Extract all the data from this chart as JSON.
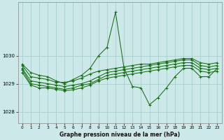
{
  "title": "Graphe pression niveau de la mer (hPa)",
  "bg_color": "#cce8e8",
  "grid_color": "#aacfcf",
  "line_color": "#1a6b1a",
  "xlim": [
    -0.5,
    23.5
  ],
  "ylim": [
    1027.6,
    1031.9
  ],
  "yticks": [
    1028,
    1029,
    1030
  ],
  "xticks": [
    0,
    1,
    2,
    3,
    4,
    5,
    6,
    7,
    8,
    9,
    10,
    11,
    12,
    13,
    14,
    15,
    16,
    17,
    18,
    19,
    20,
    21,
    22,
    23
  ],
  "series": [
    [
      1029.65,
      1029.25,
      1029.2,
      1029.15,
      1029.05,
      1029.05,
      1029.1,
      1029.2,
      1029.35,
      1029.45,
      1029.5,
      1029.55,
      1029.6,
      1029.65,
      1029.7,
      1029.7,
      1029.75,
      1029.8,
      1029.85,
      1029.9,
      1029.9,
      1029.75,
      1029.7,
      1029.75
    ],
    [
      1029.55,
      1029.1,
      1029.05,
      1029.0,
      1028.95,
      1028.9,
      1028.95,
      1029.0,
      1029.1,
      1029.25,
      1029.4,
      1029.45,
      1029.5,
      1029.55,
      1029.6,
      1029.65,
      1029.7,
      1029.75,
      1029.8,
      1029.85,
      1029.85,
      1029.65,
      1029.6,
      1029.65
    ],
    [
      1029.5,
      1029.0,
      1028.95,
      1028.9,
      1028.85,
      1028.8,
      1028.85,
      1028.95,
      1029.0,
      1029.15,
      1029.3,
      1029.35,
      1029.4,
      1029.45,
      1029.5,
      1029.55,
      1029.6,
      1029.65,
      1029.7,
      1029.75,
      1029.75,
      1029.55,
      1029.5,
      1029.55
    ],
    [
      1029.4,
      1028.95,
      1028.85,
      1028.85,
      1028.8,
      1028.75,
      1028.78,
      1028.85,
      1028.95,
      1029.1,
      1029.2,
      1029.25,
      1029.3,
      1029.35,
      1029.4,
      1029.45,
      1029.5,
      1029.55,
      1029.6,
      1029.65,
      1029.65,
      1029.45,
      1029.4,
      1029.45
    ],
    [
      1029.7,
      1029.4,
      1029.3,
      1029.25,
      1029.1,
      1029.0,
      1029.15,
      1029.3,
      1029.55,
      1030.0,
      1030.3,
      1031.55,
      1029.55,
      1028.9,
      1028.85,
      1028.25,
      1028.5,
      1028.85,
      1029.25,
      1029.55,
      1029.55,
      1029.25,
      1029.25,
      1029.55
    ]
  ]
}
